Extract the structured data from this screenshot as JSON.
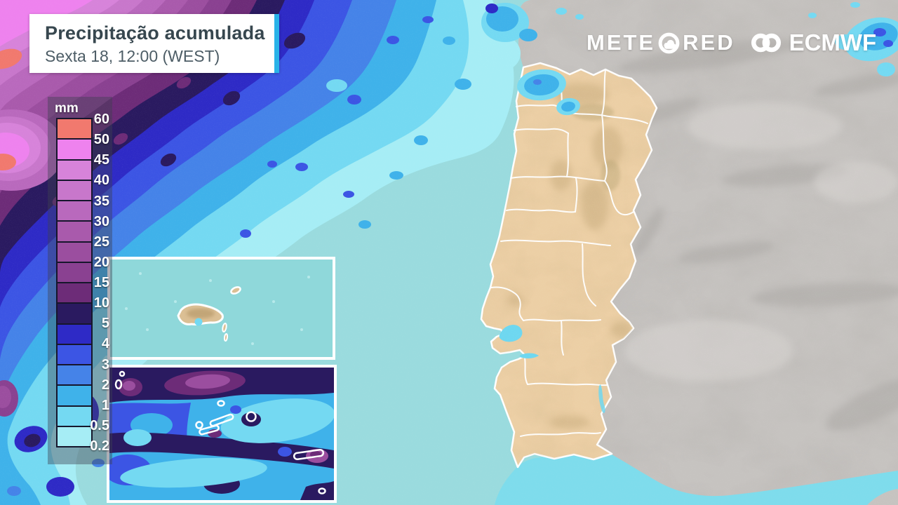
{
  "header": {
    "title": "Precipitação acumulada",
    "subtitle": "Sexta 18, 12:00 (WEST)",
    "accent_color": "#29b2e8"
  },
  "branding": {
    "meteored_pre": "METE",
    "meteored_post": "RED",
    "ecmwf": "ECMWF"
  },
  "legend": {
    "unit": "mm",
    "labels": [
      "60",
      "50",
      "45",
      "40",
      "35",
      "30",
      "25",
      "20",
      "15",
      "10",
      "5",
      "4",
      "3",
      "2",
      "1",
      "0.5",
      "0.2"
    ],
    "colors": [
      "#f1796e",
      "#ee82ee",
      "#d783da",
      "#c877cb",
      "#b969bd",
      "#a95aac",
      "#9b4e9f",
      "#8a4191",
      "#6d2c78",
      "#2a1a60",
      "#2e2ac6",
      "#3c55e4",
      "#4583e8",
      "#3fb2ea",
      "#74d9f2",
      "#a6edf5"
    ]
  },
  "map": {
    "ocean": "#9adbde",
    "sea_bright": "#7edcec",
    "spain": "#c6c3c0",
    "portugal": "#eccfa5",
    "island": "#dbbf94",
    "water_feature": "#6ed7f0",
    "inset_ocean": "#8fd8da",
    "border_color": "#ffffff"
  }
}
